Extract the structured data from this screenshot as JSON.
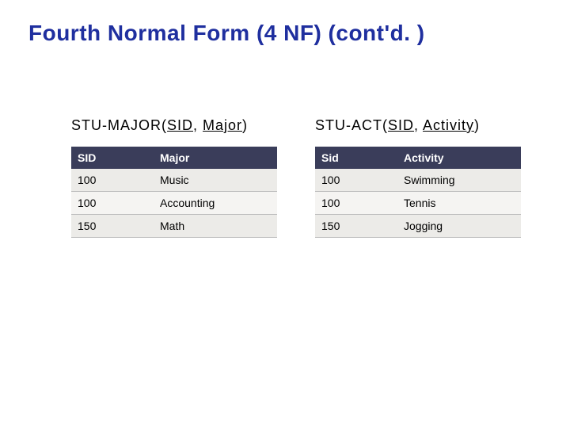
{
  "title": {
    "text": "Fourth Normal Form (4 NF) (cont'd. )",
    "color": "#1f2f9f",
    "fontsize": 28
  },
  "colors": {
    "header_bg": "#3a3d5a",
    "header_text": "#ffffff",
    "row_bg_odd": "#f5f4f2",
    "row_bg_even": "#ecebe8",
    "row_text": "#000000",
    "border": "#bcbcbc",
    "background": "#ffffff"
  },
  "left": {
    "caption_prefix": "STU-MAJOR(",
    "caption_k1": "SID",
    "caption_sep": ", ",
    "caption_k2": "Major",
    "caption_suffix": ")",
    "columns": [
      "SID",
      "Major"
    ],
    "rows": [
      [
        "100",
        "Music"
      ],
      [
        "100",
        "Accounting"
      ],
      [
        "150",
        "Math"
      ]
    ]
  },
  "right": {
    "caption_prefix": "STU-ACT(",
    "caption_k1": "SID",
    "caption_sep": ", ",
    "caption_k2": "Activity",
    "caption_suffix": ")",
    "columns": [
      "Sid",
      "Activity"
    ],
    "rows": [
      [
        "100",
        "Swimming"
      ],
      [
        "100",
        "Tennis"
      ],
      [
        "150",
        "Jogging"
      ]
    ]
  }
}
